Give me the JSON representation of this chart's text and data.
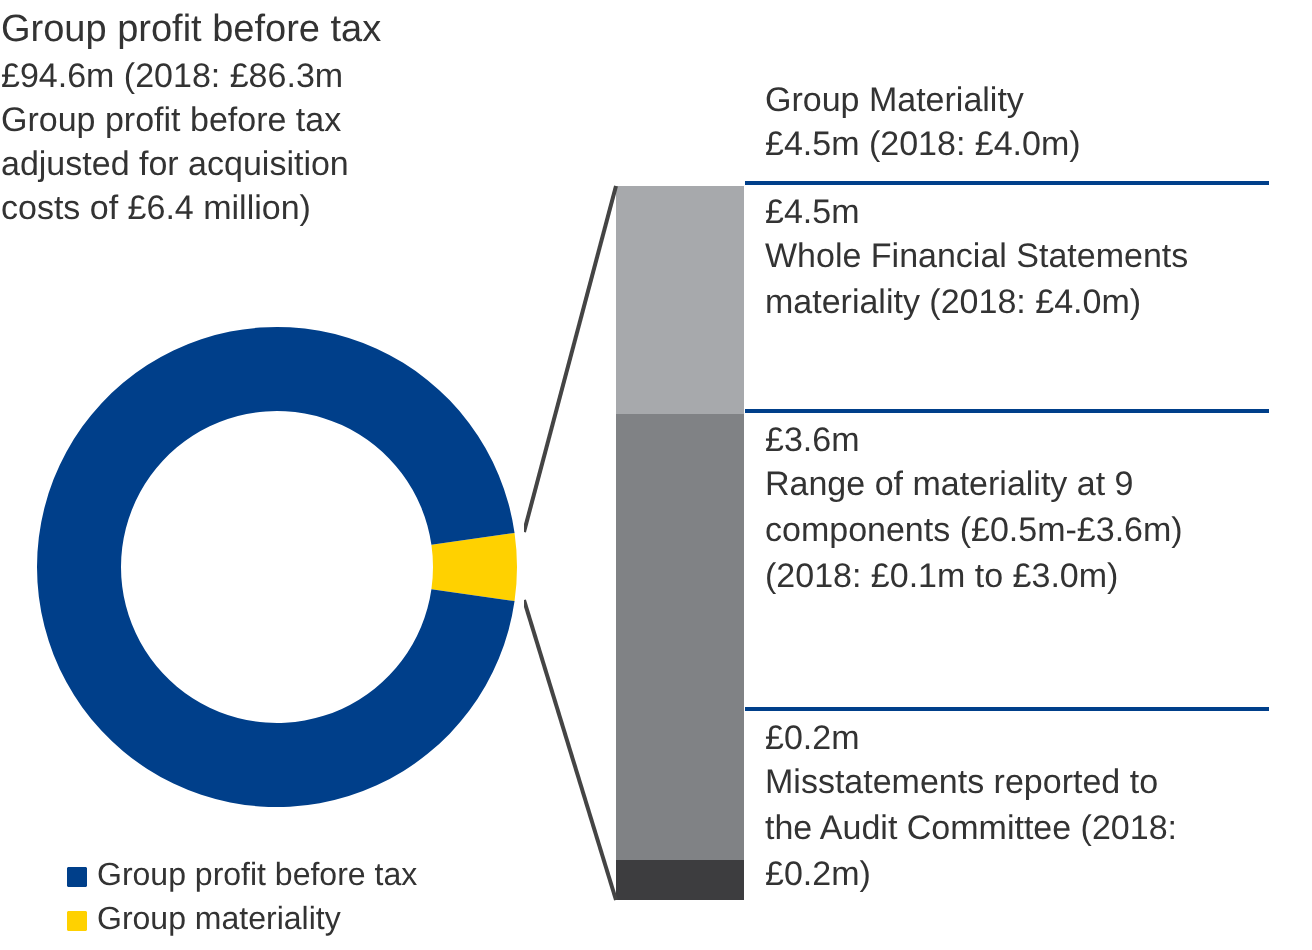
{
  "chart_data": [
    {
      "type": "donut",
      "title": "Group profit before tax",
      "subtitle": "£94.6m (2018: £86.3m",
      "annotations": [
        "Group profit before tax adjusted for acquisition costs of £6.4 million)"
      ],
      "categories": [
        "Group profit before tax",
        "Group materiality"
      ],
      "values": [
        94.6,
        4.5
      ],
      "colors": [
        "#003f8a",
        "#ffd100"
      ],
      "legend": "bottom left"
    },
    {
      "type": "other",
      "title": "Group Materiality",
      "subtitle": "£4.5m (2018: £4.0m)",
      "colors": [
        "#a7a9ac",
        "#808285",
        "#3d3d3f"
      ],
      "annotations": [
        "£4.5m",
        "Whole Financial Statements materiality (2018: £4.0m)",
        "£3.6m",
        "Range of materiality at 9 components (£0.5m-£3.6m) (2018: £0.1m to £3.0m)",
        "£0.2m",
        "Misstatements reported to the Audit Committee (2018: £0.2m)"
      ]
    }
  ]
}
